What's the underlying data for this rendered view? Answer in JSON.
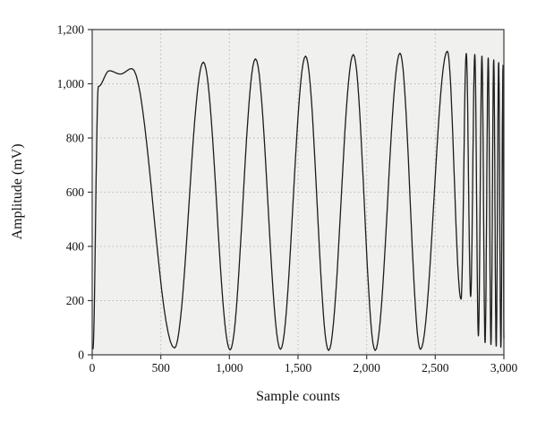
{
  "chart_data": {
    "type": "line",
    "title": "",
    "xlabel": "Sample counts",
    "ylabel": "Amplitude (mV)",
    "xlim": [
      0,
      3000
    ],
    "ylim": [
      0,
      1200
    ],
    "x_ticks": [
      0,
      500,
      1000,
      1500,
      2000,
      2500,
      3000
    ],
    "x_tick_labels": [
      "0",
      "500",
      "1,000",
      "1,500",
      "2,000",
      "2,500",
      "3,000"
    ],
    "y_ticks": [
      0,
      200,
      400,
      600,
      800,
      1000,
      1200
    ],
    "y_tick_labels": [
      "0",
      "200",
      "400",
      "600",
      "800",
      "1,000",
      "1,200"
    ],
    "grid": true,
    "legend": "none",
    "line_color": "#1c1c1c",
    "plot_bg": "#f0f0ee",
    "grid_color": "#b8b8b8",
    "axis_color": "#3a3a3a",
    "series_name": "ADC output amplitude (chirp-like waveform, frequency increasing with sample count)",
    "interpolation": "half-cosine between extrema",
    "extrema_points": [
      [
        5,
        20
      ],
      [
        45,
        990
      ],
      [
        125,
        1048
      ],
      [
        205,
        1036
      ],
      [
        290,
        1056
      ],
      [
        600,
        25
      ],
      [
        810,
        1080
      ],
      [
        1005,
        18
      ],
      [
        1190,
        1092
      ],
      [
        1372,
        20
      ],
      [
        1555,
        1102
      ],
      [
        1723,
        16
      ],
      [
        1903,
        1108
      ],
      [
        2062,
        16
      ],
      [
        2243,
        1113
      ],
      [
        2392,
        20
      ],
      [
        2588,
        1120
      ],
      [
        2688,
        205
      ],
      [
        2726,
        1112
      ],
      [
        2758,
        215
      ],
      [
        2788,
        1108
      ],
      [
        2814,
        70
      ],
      [
        2840,
        1102
      ],
      [
        2863,
        45
      ],
      [
        2886,
        1095
      ],
      [
        2906,
        38
      ],
      [
        2926,
        1088
      ],
      [
        2944,
        32
      ],
      [
        2962,
        1078
      ],
      [
        2978,
        28
      ],
      [
        2994,
        1068
      ],
      [
        3000,
        60
      ]
    ]
  }
}
